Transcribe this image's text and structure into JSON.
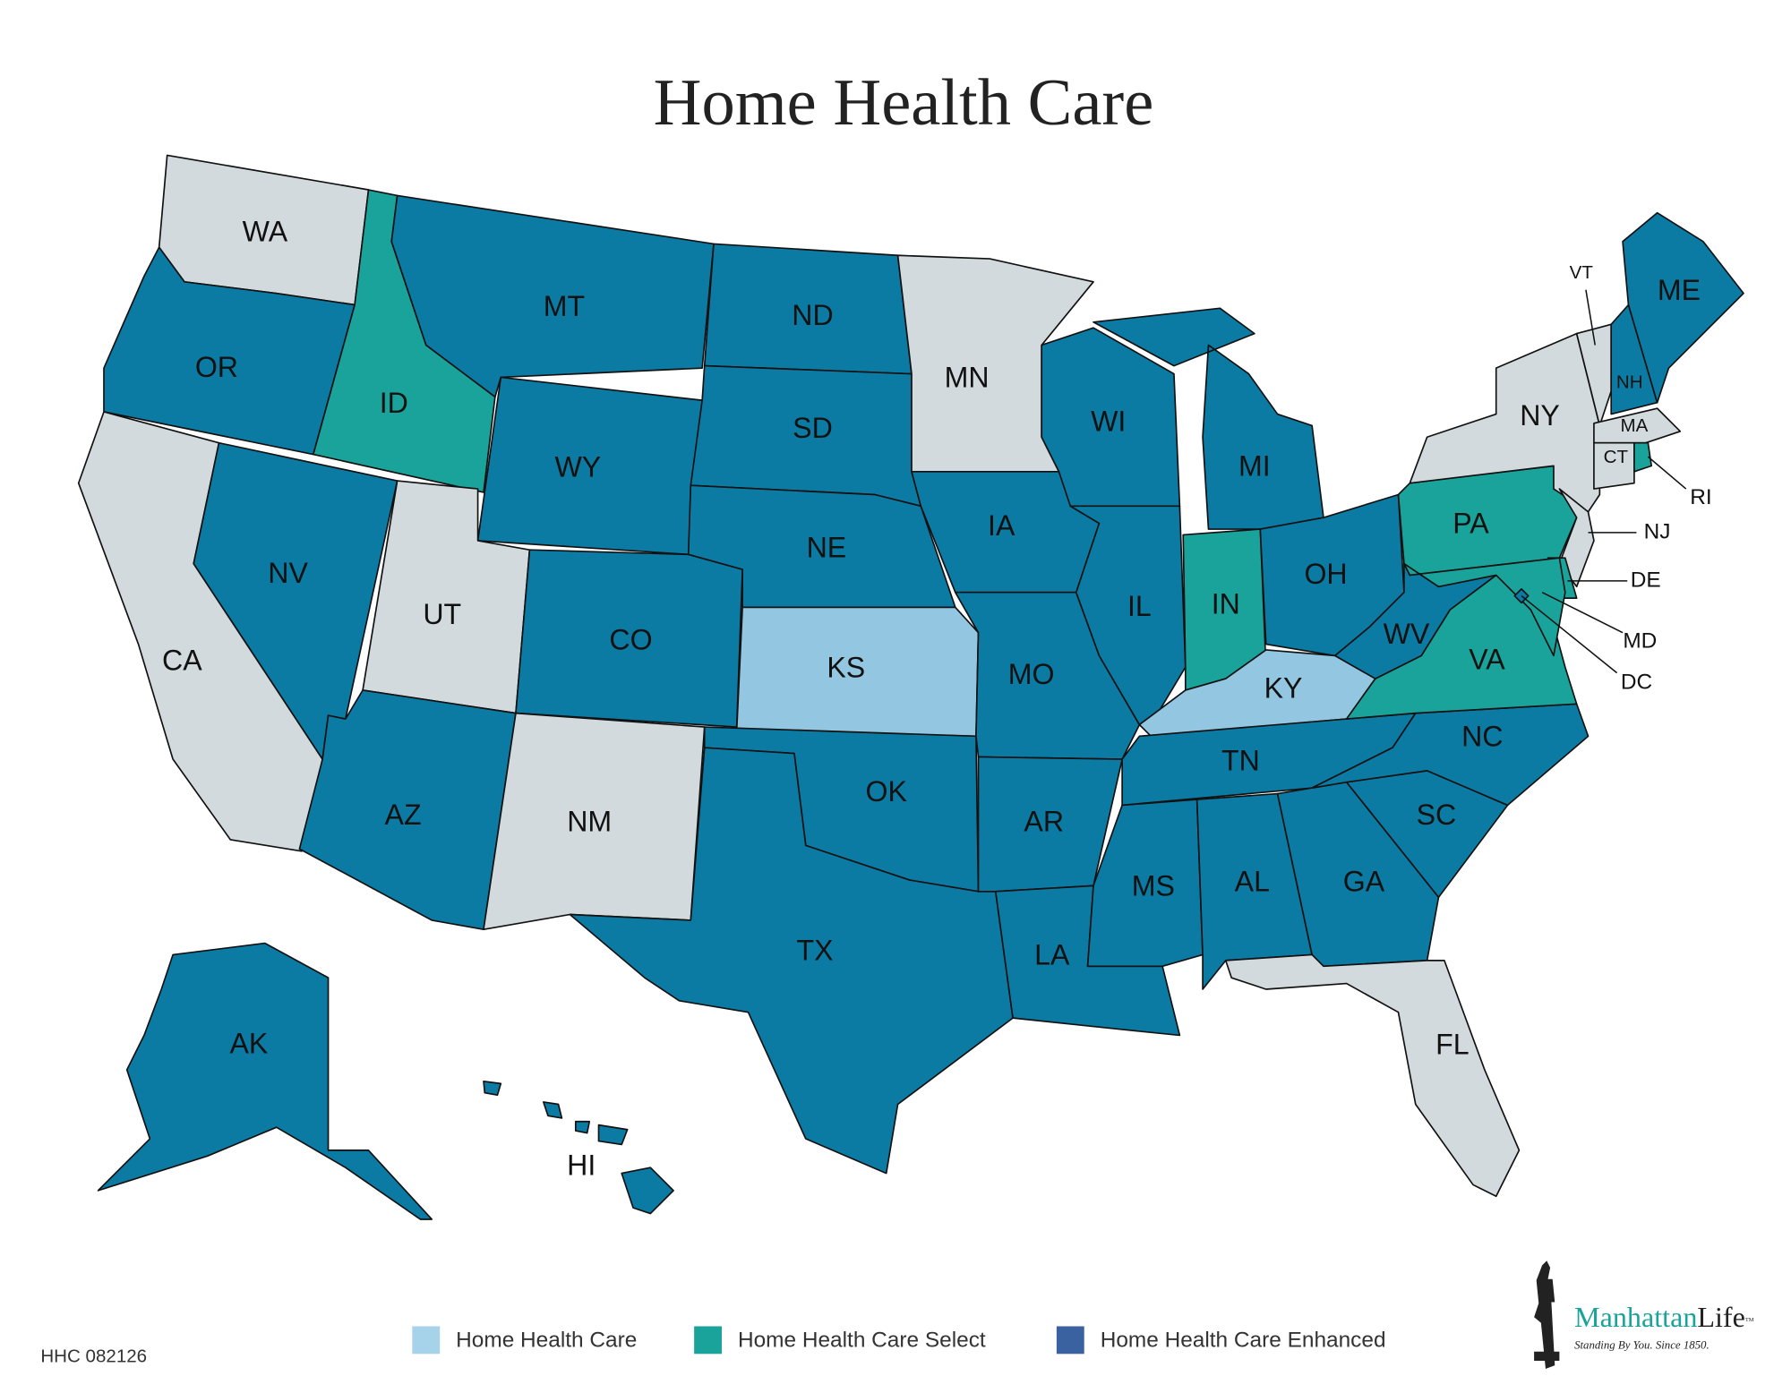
{
  "header": {
    "title": "Home Health Care"
  },
  "states": [
    {
      "label": "WA",
      "color": "#d3dadd"
    },
    {
      "label": "OR",
      "color": "#0b7ba3"
    },
    {
      "label": "CA",
      "color": "#d3dadd"
    },
    {
      "label": "NV",
      "color": "#0b7ba3"
    },
    {
      "label": "ID",
      "color": "#1aa39a"
    },
    {
      "label": "MT",
      "color": "#0b7ba3"
    },
    {
      "label": "WY",
      "color": "#0b7ba3"
    },
    {
      "label": "UT",
      "color": "#d3dadd"
    },
    {
      "label": "CO",
      "color": "#0b7ba3"
    },
    {
      "label": "AZ",
      "color": "#0b7ba3"
    },
    {
      "label": "NM",
      "color": "#d3dadd"
    },
    {
      "label": "ND",
      "color": "#0b7ba3"
    },
    {
      "label": "SD",
      "color": "#0b7ba3"
    },
    {
      "label": "NE",
      "color": "#0b7ba3"
    },
    {
      "label": "KS",
      "color": "#93c6e0"
    },
    {
      "label": "OK",
      "color": "#0b7ba3"
    },
    {
      "label": "TX",
      "color": "#0b7ba3"
    },
    {
      "label": "MN",
      "color": "#d3dadd"
    },
    {
      "label": "IA",
      "color": "#0b7ba3"
    },
    {
      "label": "MO",
      "color": "#0b7ba3"
    },
    {
      "label": "AR",
      "color": "#0b7ba3"
    },
    {
      "label": "LA",
      "color": "#0b7ba3"
    },
    {
      "label": "WI",
      "color": "#0b7ba3"
    },
    {
      "label": "IL",
      "color": "#0b7ba3"
    },
    {
      "label": "MI",
      "color": "#0b7ba3"
    },
    {
      "label": "IN",
      "color": "#1aa39a"
    },
    {
      "label": "OH",
      "color": "#0b7ba3"
    },
    {
      "label": "KY",
      "color": "#93c6e0"
    },
    {
      "label": "TN",
      "color": "#0b7ba3"
    },
    {
      "label": "MS",
      "color": "#0b7ba3"
    },
    {
      "label": "AL",
      "color": "#0b7ba3"
    },
    {
      "label": "GA",
      "color": "#0b7ba3"
    },
    {
      "label": "SC",
      "color": "#0b7ba3"
    },
    {
      "label": "NC",
      "color": "#0b7ba3"
    },
    {
      "label": "VA",
      "color": "#1aa39a"
    },
    {
      "label": "WV",
      "color": "#0b7ba3"
    },
    {
      "label": "PA",
      "color": "#1aa39a"
    },
    {
      "label": "NY",
      "color": "#d3dadd"
    },
    {
      "label": "NJ",
      "color": "#d3dadd"
    },
    {
      "label": "DE",
      "color": "#1aa39a"
    },
    {
      "label": "MD",
      "color": "#1aa39a"
    },
    {
      "label": "DC",
      "color": "#0b7ba3"
    },
    {
      "label": "VT",
      "color": "#d3dadd"
    },
    {
      "label": "NH",
      "color": "#0b7ba3"
    },
    {
      "label": "ME",
      "color": "#0b7ba3"
    },
    {
      "label": "MA",
      "color": "#d3dadd"
    },
    {
      "label": "CT",
      "color": "#d3dadd"
    },
    {
      "label": "RI",
      "color": "#1aa39a"
    },
    {
      "label": "FL",
      "color": "#d3dadd"
    },
    {
      "label": "AK",
      "color": "#0b7ba3"
    },
    {
      "label": "HI",
      "color": "#0b7ba3"
    }
  ],
  "legend": [
    {
      "name": "Home Health Care",
      "color": "#a7d3ea"
    },
    {
      "name": "Home Health Care Select",
      "color": "#1aa39a"
    },
    {
      "name": "Home Health Care Enhanced",
      "color": "#3a62a0"
    }
  ],
  "footer": {
    "code": "HHC 082126"
  },
  "logo": {
    "parts": [
      "Manhattan",
      "Life"
    ],
    "mark": "TM",
    "tagline": "Standing By You. Since 1850."
  }
}
